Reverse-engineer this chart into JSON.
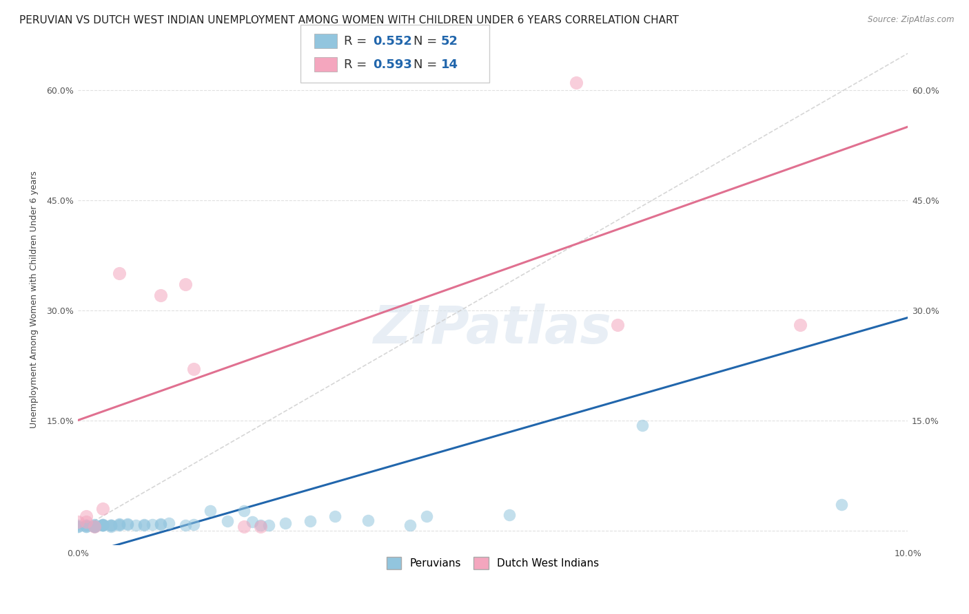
{
  "title": "PERUVIAN VS DUTCH WEST INDIAN UNEMPLOYMENT AMONG WOMEN WITH CHILDREN UNDER 6 YEARS CORRELATION CHART",
  "source": "Source: ZipAtlas.com",
  "ylabel": "Unemployment Among Women with Children Under 6 years",
  "xlim": [
    0.0,
    0.1
  ],
  "ylim": [
    -0.02,
    0.65
  ],
  "xticks": [
    0.0,
    0.02,
    0.04,
    0.06,
    0.08,
    0.1
  ],
  "yticks": [
    0.0,
    0.15,
    0.3,
    0.45,
    0.6
  ],
  "xticklabels": [
    "0.0%",
    "",
    "",
    "",
    "",
    "10.0%"
  ],
  "peruvian_color": "#92c5de",
  "dutch_color": "#f4a6be",
  "peruvian_R": 0.552,
  "peruvian_N": 52,
  "dutch_R": 0.593,
  "dutch_N": 14,
  "legend_label_peruvian": "Peruvians",
  "legend_label_dutch": "Dutch West Indians",
  "watermark": "ZIPatlas",
  "peruvian_x": [
    0.0,
    0.0,
    0.0,
    0.001,
    0.001,
    0.001,
    0.001,
    0.002,
    0.002,
    0.002,
    0.002,
    0.002,
    0.002,
    0.003,
    0.003,
    0.003,
    0.003,
    0.003,
    0.003,
    0.004,
    0.004,
    0.004,
    0.004,
    0.005,
    0.005,
    0.005,
    0.006,
    0.006,
    0.007,
    0.008,
    0.008,
    0.009,
    0.01,
    0.01,
    0.011,
    0.013,
    0.014,
    0.016,
    0.018,
    0.02,
    0.021,
    0.022,
    0.023,
    0.025,
    0.028,
    0.031,
    0.035,
    0.04,
    0.042,
    0.052,
    0.068,
    0.092
  ],
  "peruvian_y": [
    0.005,
    0.005,
    0.007,
    0.005,
    0.007,
    0.007,
    0.005,
    0.005,
    0.007,
    0.008,
    0.005,
    0.005,
    0.005,
    0.007,
    0.007,
    0.008,
    0.007,
    0.007,
    0.008,
    0.007,
    0.007,
    0.007,
    0.005,
    0.008,
    0.009,
    0.007,
    0.008,
    0.009,
    0.007,
    0.007,
    0.008,
    0.008,
    0.009,
    0.008,
    0.01,
    0.007,
    0.008,
    0.027,
    0.013,
    0.027,
    0.012,
    0.007,
    0.007,
    0.01,
    0.013,
    0.019,
    0.014,
    0.007,
    0.019,
    0.021,
    0.143,
    0.035
  ],
  "dutch_x": [
    0.0,
    0.001,
    0.001,
    0.002,
    0.003,
    0.005,
    0.01,
    0.013,
    0.014,
    0.02,
    0.022,
    0.06,
    0.065,
    0.087
  ],
  "dutch_y": [
    0.012,
    0.019,
    0.012,
    0.005,
    0.03,
    0.35,
    0.32,
    0.335,
    0.22,
    0.005,
    0.005,
    0.61,
    0.28,
    0.28
  ],
  "peruvian_line_color": "#2166ac",
  "dutch_line_color": "#e07090",
  "diag_line_color": "#cccccc",
  "grid_color": "#e0e0e0",
  "bg_color": "#ffffff",
  "title_fontsize": 11,
  "axis_fontsize": 9,
  "tick_fontsize": 9,
  "r_n_color": "#2166ac",
  "r_n_label_color": "#333333"
}
